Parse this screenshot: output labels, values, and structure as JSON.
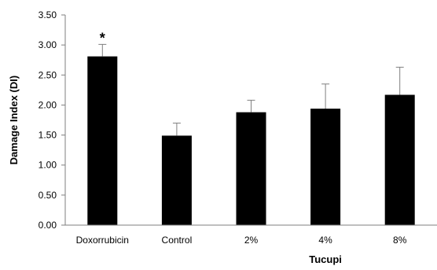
{
  "chart_data": {
    "type": "bar",
    "categories": [
      "Doxorrubicin",
      "Control",
      "2%",
      "4%",
      "8%"
    ],
    "values": [
      2.81,
      1.49,
      1.88,
      1.94,
      2.17
    ],
    "error_upper": [
      0.2,
      0.21,
      0.2,
      0.41,
      0.46
    ],
    "title": "",
    "xlabel": "Tucupi",
    "ylabel": "Damage Index (DI)",
    "ylim": [
      0,
      3.5
    ],
    "yticks": [
      "0.00",
      "0.50",
      "1.00",
      "1.50",
      "2.00",
      "2.50",
      "3.00",
      "3.50"
    ],
    "grid": false,
    "legend": "none",
    "bar_color": "#000000",
    "annotations": [
      {
        "category": "Doxorrubicin",
        "text": "*"
      }
    ]
  }
}
